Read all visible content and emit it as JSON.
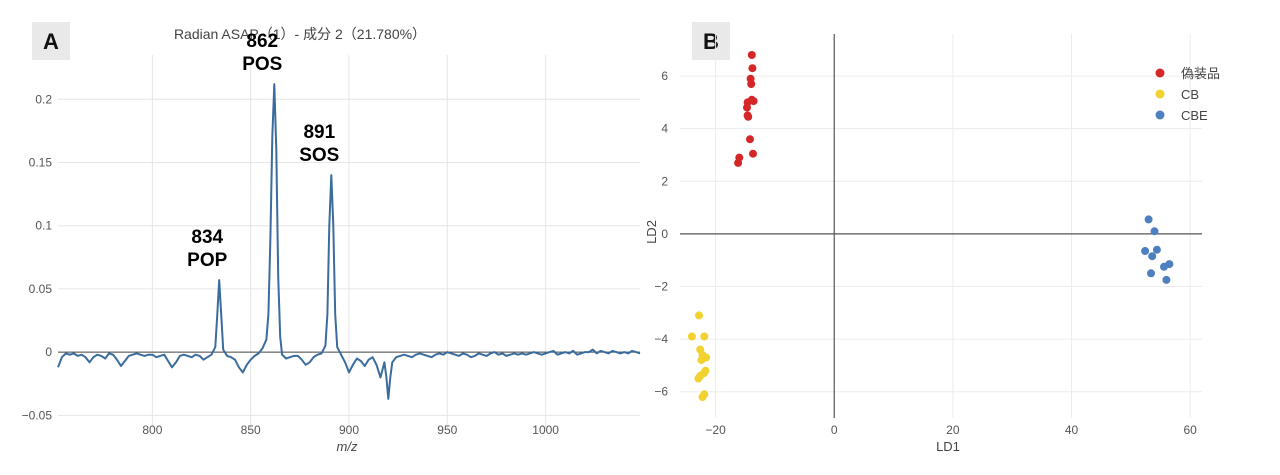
{
  "chart_data": [
    {
      "panel": "A",
      "type": "line",
      "title": "Radian ASAP（1）- 成分 2（21.780%）",
      "xlabel": "m/z",
      "ylabel": "",
      "xlim": [
        752,
        1048
      ],
      "ylim": [
        -0.06,
        0.235
      ],
      "xticks": [
        800,
        850,
        900,
        950,
        1000
      ],
      "xtick_labels": [
        "800",
        "850",
        "900",
        "950",
        "1000"
      ],
      "yticks": [
        -0.05,
        0,
        0.05,
        0.1,
        0.15,
        0.2
      ],
      "ytick_labels": [
        "−0.05",
        "0",
        "0.05",
        "0.1",
        "0.15",
        "0.2"
      ],
      "line_color": "#3b6c9e",
      "series": [
        {
          "name": "成分 2",
          "x": [
            752,
            754,
            756,
            758,
            760,
            762,
            764,
            766,
            768,
            770,
            772,
            774,
            776,
            778,
            780,
            782,
            784,
            786,
            788,
            790,
            792,
            794,
            796,
            798,
            800,
            802,
            804,
            806,
            808,
            810,
            812,
            814,
            816,
            818,
            820,
            822,
            824,
            826,
            828,
            830,
            832,
            833,
            834,
            835,
            836,
            838,
            840,
            842,
            844,
            846,
            848,
            850,
            852,
            854,
            856,
            858,
            859,
            860,
            861,
            862,
            863,
            864,
            865,
            866,
            868,
            870,
            872,
            874,
            876,
            878,
            880,
            882,
            884,
            886,
            888,
            889,
            890,
            891,
            892,
            893,
            894,
            896,
            898,
            900,
            902,
            904,
            906,
            908,
            910,
            912,
            914,
            916,
            918,
            919,
            920,
            921,
            922,
            924,
            926,
            928,
            930,
            932,
            934,
            936,
            938,
            940,
            942,
            944,
            946,
            948,
            950,
            952,
            954,
            956,
            958,
            960,
            962,
            964,
            966,
            968,
            970,
            972,
            974,
            976,
            978,
            980,
            982,
            984,
            986,
            988,
            990,
            992,
            994,
            996,
            998,
            1000,
            1002,
            1004,
            1006,
            1008,
            1010,
            1012,
            1014,
            1016,
            1018,
            1020,
            1022,
            1024,
            1026,
            1028,
            1030,
            1032,
            1034,
            1036,
            1038,
            1040,
            1042,
            1044,
            1046,
            1048
          ],
          "y": [
            -0.012,
            -0.004,
            -0.001,
            -0.002,
            -0.001,
            -0.003,
            -0.002,
            -0.004,
            -0.008,
            -0.004,
            -0.002,
            -0.003,
            -0.005,
            -0.001,
            -0.002,
            -0.006,
            -0.011,
            -0.007,
            -0.003,
            -0.002,
            -0.001,
            -0.002,
            -0.003,
            -0.002,
            -0.002,
            -0.004,
            -0.003,
            -0.002,
            -0.007,
            -0.012,
            -0.008,
            -0.003,
            -0.002,
            -0.003,
            -0.004,
            -0.002,
            -0.003,
            -0.006,
            -0.004,
            -0.002,
            0.004,
            0.03,
            0.057,
            0.03,
            0.002,
            -0.003,
            -0.004,
            -0.006,
            -0.012,
            -0.016,
            -0.01,
            -0.006,
            -0.003,
            -0.001,
            0.003,
            0.01,
            0.03,
            0.09,
            0.17,
            0.212,
            0.16,
            0.06,
            0.012,
            -0.002,
            -0.005,
            -0.004,
            -0.003,
            -0.003,
            -0.006,
            -0.01,
            -0.008,
            -0.004,
            -0.002,
            -0.001,
            0.005,
            0.03,
            0.1,
            0.14,
            0.1,
            0.03,
            0.004,
            -0.002,
            -0.008,
            -0.016,
            -0.01,
            -0.005,
            -0.007,
            -0.011,
            -0.006,
            -0.004,
            -0.01,
            -0.02,
            -0.008,
            -0.02,
            -0.037,
            -0.02,
            -0.008,
            -0.004,
            -0.003,
            -0.002,
            -0.003,
            -0.004,
            -0.002,
            -0.001,
            -0.002,
            -0.003,
            -0.004,
            -0.002,
            -0.001,
            -0.002,
            0.0,
            -0.001,
            -0.002,
            -0.003,
            -0.001,
            -0.002,
            -0.004,
            -0.003,
            -0.001,
            -0.002,
            -0.003,
            -0.001,
            0.0,
            -0.002,
            -0.001,
            -0.003,
            -0.002,
            -0.001,
            -0.002,
            -0.001,
            -0.002,
            -0.001,
            0.0,
            -0.001,
            -0.002,
            -0.001,
            0.0,
            0.001,
            -0.002,
            -0.001,
            0.0,
            -0.001,
            0.001,
            -0.002,
            -0.001,
            0.0,
            0.0,
            0.002,
            -0.001,
            0.001,
            0.0,
            -0.001,
            0.001,
            0.0,
            -0.001,
            0.0,
            -0.001,
            0.001,
            0.0,
            -0.001
          ]
        }
      ],
      "annotations": [
        {
          "x": 834,
          "y": 0.057,
          "mz": "834",
          "name": "POP"
        },
        {
          "x": 862,
          "y": 0.212,
          "mz": "862",
          "name": "POS"
        },
        {
          "x": 891,
          "y": 0.14,
          "mz": "891",
          "name": "SOS"
        }
      ]
    },
    {
      "panel": "B",
      "type": "scatter",
      "title": "",
      "xlabel": "LD1",
      "ylabel": "LD2",
      "xlim": [
        -26,
        62
      ],
      "ylim": [
        -7.0,
        7.6
      ],
      "xticks": [
        -20,
        0,
        20,
        40,
        60
      ],
      "xtick_labels": [
        "−20",
        "0",
        "20",
        "40",
        "60"
      ],
      "yticks": [
        -6,
        -4,
        -2,
        0,
        2,
        4,
        6
      ],
      "ytick_labels": [
        "−6",
        "−4",
        "−2",
        "0",
        "2",
        "4",
        "6"
      ],
      "legend_position": "top-right",
      "series": [
        {
          "name": "偽装品",
          "color": "#d62728",
          "points": [
            [
              -13.9,
              6.8
            ],
            [
              -13.8,
              6.3
            ],
            [
              -14.1,
              5.9
            ],
            [
              -14.0,
              5.7
            ],
            [
              -14.6,
              5.0
            ],
            [
              -13.9,
              5.1
            ],
            [
              -13.6,
              5.05
            ],
            [
              -14.7,
              4.8
            ],
            [
              -14.6,
              4.5
            ],
            [
              -14.5,
              4.45
            ],
            [
              -14.2,
              3.6
            ],
            [
              -13.7,
              3.05
            ],
            [
              -16.0,
              2.9
            ],
            [
              -16.2,
              2.7
            ]
          ]
        },
        {
          "name": "CB",
          "color": "#f2d22e",
          "points": [
            [
              -22.8,
              -3.1
            ],
            [
              -24.0,
              -3.9
            ],
            [
              -21.9,
              -3.9
            ],
            [
              -22.6,
              -4.4
            ],
            [
              -22.2,
              -4.6
            ],
            [
              -21.6,
              -4.7
            ],
            [
              -22.4,
              -4.8
            ],
            [
              -21.7,
              -5.2
            ],
            [
              -22.0,
              -5.3
            ],
            [
              -22.6,
              -5.4
            ],
            [
              -22.9,
              -5.5
            ],
            [
              -21.9,
              -6.1
            ],
            [
              -22.2,
              -6.2
            ]
          ]
        },
        {
          "name": "CBE",
          "color": "#4e7fbf",
          "points": [
            [
              53.0,
              0.55
            ],
            [
              54.0,
              0.1
            ],
            [
              52.4,
              -0.65
            ],
            [
              54.4,
              -0.6
            ],
            [
              53.6,
              -0.85
            ],
            [
              56.5,
              -1.15
            ],
            [
              55.6,
              -1.25
            ],
            [
              53.4,
              -1.5
            ],
            [
              56.0,
              -1.75
            ]
          ]
        }
      ]
    }
  ]
}
